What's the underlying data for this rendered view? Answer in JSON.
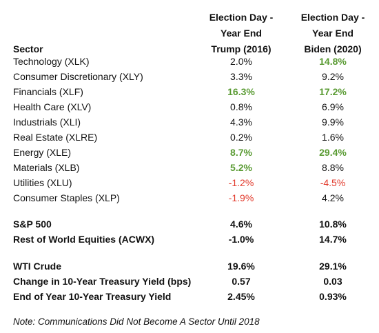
{
  "header": {
    "sector_label": "Sector",
    "trump_col": [
      "Election Day -",
      "Year End",
      "Trump (2016)"
    ],
    "biden_col": [
      "Election Day -",
      "Year End",
      "Biden (2020)"
    ]
  },
  "sectors": [
    {
      "name": "Technology (XLK)",
      "trump": "2.0%",
      "biden": "14.8%",
      "trump_style": "",
      "biden_style": "green"
    },
    {
      "name": "Consumer Discretionary (XLY)",
      "trump": "3.3%",
      "biden": "9.2%",
      "trump_style": "",
      "biden_style": ""
    },
    {
      "name": "Financials (XLF)",
      "trump": "16.3%",
      "biden": "17.2%",
      "trump_style": "green",
      "biden_style": "green"
    },
    {
      "name": "Health Care (XLV)",
      "trump": "0.8%",
      "biden": "6.9%",
      "trump_style": "",
      "biden_style": ""
    },
    {
      "name": "Industrials (XLI)",
      "trump": "4.3%",
      "biden": "9.9%",
      "trump_style": "",
      "biden_style": ""
    },
    {
      "name": "Real Estate (XLRE)",
      "trump": "0.2%",
      "biden": "1.6%",
      "trump_style": "",
      "biden_style": ""
    },
    {
      "name": "Energy (XLE)",
      "trump": "8.7%",
      "biden": "29.4%",
      "trump_style": "green",
      "biden_style": "green"
    },
    {
      "name": "Materials (XLB)",
      "trump": "5.2%",
      "biden": "8.8%",
      "trump_style": "green",
      "biden_style": ""
    },
    {
      "name": "Utilities (XLU)",
      "trump": "-1.2%",
      "biden": "-4.5%",
      "trump_style": "red",
      "biden_style": "red"
    },
    {
      "name": "Consumer Staples (XLP)",
      "trump": "-1.9%",
      "biden": "4.2%",
      "trump_style": "red",
      "biden_style": ""
    }
  ],
  "indexes": [
    {
      "name": "S&P 500",
      "trump": "4.6%",
      "biden": "10.8%"
    },
    {
      "name": "Rest of World Equities (ACWX)",
      "trump": "-1.0%",
      "biden": "14.7%"
    }
  ],
  "macro": [
    {
      "name": "WTI Crude",
      "trump": "19.6%",
      "biden": "29.1%"
    },
    {
      "name": "Change in 10-Year Treasury Yield (bps)",
      "trump": "0.57",
      "biden": "0.03"
    },
    {
      "name": "End of Year 10-Year Treasury Yield",
      "trump": "2.45%",
      "biden": "0.93%"
    }
  ],
  "note": "Note: Communications Did Not Become A Sector Until 2018",
  "colors": {
    "highlight_green": "#5a9b33",
    "highlight_red": "#e23a2c",
    "text": "#111111"
  }
}
